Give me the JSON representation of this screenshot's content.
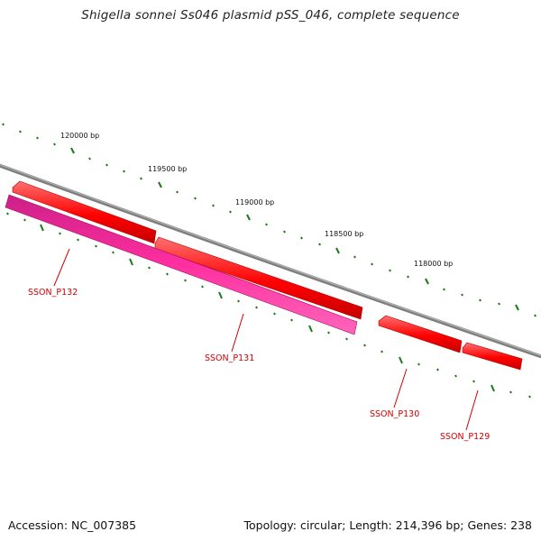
{
  "title": "Shigella sonnei Ss046 plasmid pSS_046, complete sequence",
  "footer": {
    "accession": "Accession: NC_007385",
    "topology": "Topology: circular; Length: 214,396 bp; Genes: 238"
  },
  "scale_labels": [
    "120000 bp",
    "119500 bp",
    "119000 bp",
    "118500 bp",
    "118000 bp"
  ],
  "genes": [
    {
      "name": "SSON_P132",
      "color": "#ff3399",
      "strand": "reverse"
    },
    {
      "name": "SSON_P131",
      "color": "#ff0000",
      "strand": "forward"
    },
    {
      "name": "SSON_P130",
      "color": "#ff0000",
      "strand": "forward"
    },
    {
      "name": "SSON_P129",
      "color": "#ff0000",
      "strand": "forward"
    }
  ],
  "colors": {
    "backbone": "#7f7f7f",
    "tick": "#1a7a1a",
    "label": "#d40000"
  }
}
